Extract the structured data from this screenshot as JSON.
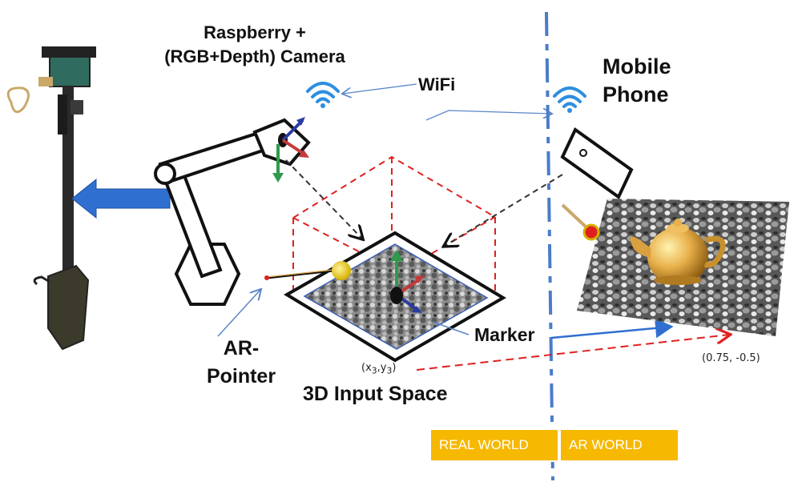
{
  "camera": {
    "title_line1": "Raspberry +",
    "title_line2": "(RGB+Depth) Camera"
  },
  "wifi": {
    "label": "WiFi"
  },
  "phone": {
    "title_line1": "Mobile",
    "title_line2": "Phone"
  },
  "pointer": {
    "line1": "AR-",
    "line2": "Pointer"
  },
  "marker": {
    "label": "Marker"
  },
  "input_space": {
    "label": "3D Input Space"
  },
  "coords": {
    "x_prefix": "(x",
    "sub1": "3",
    "mid": ",y",
    "sub2": "3",
    "suffix": ")",
    "right": "(0.75, -0.5)"
  },
  "badges": {
    "real": "REAL WORLD",
    "ar": "AR WORLD"
  },
  "colors": {
    "divider": "#4a7cc9",
    "badge": "#f6b800",
    "dashed_red": "#e02020",
    "arrow_blue": "#2f6fd0"
  }
}
